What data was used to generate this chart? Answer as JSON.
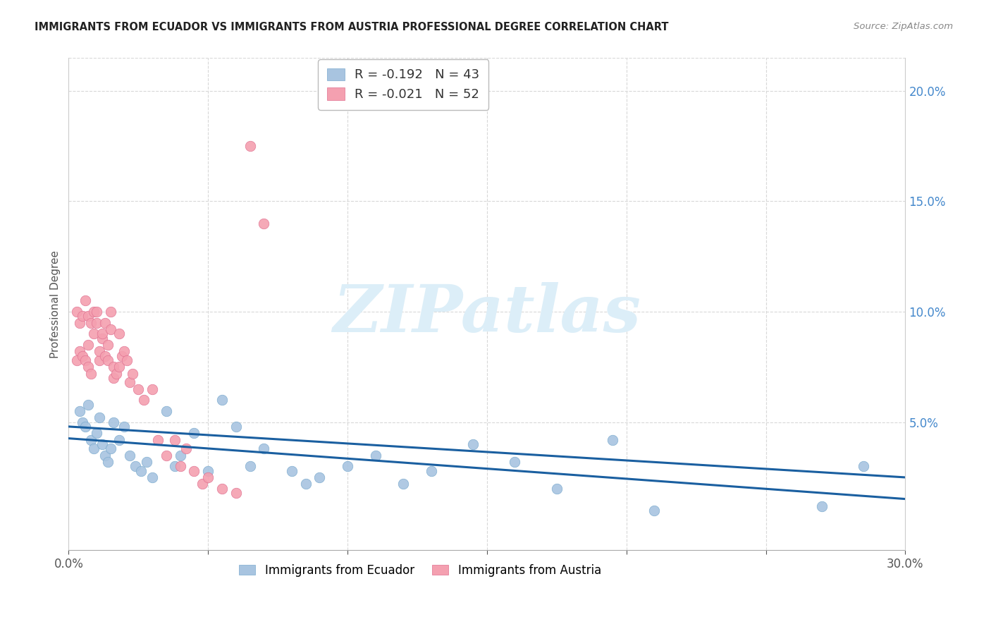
{
  "title": "IMMIGRANTS FROM ECUADOR VS IMMIGRANTS FROM AUSTRIA PROFESSIONAL DEGREE CORRELATION CHART",
  "source": "Source: ZipAtlas.com",
  "ylabel": "Professional Degree",
  "right_ytick_labels": [
    "20.0%",
    "15.0%",
    "10.0%",
    "5.0%"
  ],
  "right_ytick_values": [
    0.2,
    0.15,
    0.1,
    0.05
  ],
  "xlim": [
    0.0,
    0.3
  ],
  "ylim": [
    -0.008,
    0.215
  ],
  "ecuador_color": "#a8c4e0",
  "austria_color": "#f4a0b0",
  "ecuador_edge_color": "#7aaace",
  "austria_edge_color": "#e07090",
  "ecuador_label": "Immigrants from Ecuador",
  "austria_label": "Immigrants from Austria",
  "ecuador_R": "-0.192",
  "ecuador_N": "43",
  "austria_R": "-0.021",
  "austria_N": "52",
  "trendline_ecuador_color": "#1a5fa0",
  "trendline_austria_color": "#d04060",
  "watermark": "ZIPatlas",
  "watermark_color": "#dceef8",
  "grid_color": "#d8d8d8",
  "ecuador_x": [
    0.004,
    0.005,
    0.006,
    0.007,
    0.008,
    0.009,
    0.01,
    0.011,
    0.012,
    0.013,
    0.014,
    0.015,
    0.016,
    0.018,
    0.02,
    0.022,
    0.024,
    0.026,
    0.028,
    0.03,
    0.035,
    0.038,
    0.04,
    0.045,
    0.05,
    0.055,
    0.06,
    0.065,
    0.07,
    0.08,
    0.085,
    0.09,
    0.1,
    0.11,
    0.12,
    0.13,
    0.145,
    0.16,
    0.175,
    0.195,
    0.21,
    0.27,
    0.285
  ],
  "ecuador_y": [
    0.055,
    0.05,
    0.048,
    0.058,
    0.042,
    0.038,
    0.045,
    0.052,
    0.04,
    0.035,
    0.032,
    0.038,
    0.05,
    0.042,
    0.048,
    0.035,
    0.03,
    0.028,
    0.032,
    0.025,
    0.055,
    0.03,
    0.035,
    0.045,
    0.028,
    0.06,
    0.048,
    0.03,
    0.038,
    0.028,
    0.022,
    0.025,
    0.03,
    0.035,
    0.022,
    0.028,
    0.04,
    0.032,
    0.02,
    0.042,
    0.01,
    0.012,
    0.03
  ],
  "austria_x": [
    0.003,
    0.003,
    0.004,
    0.004,
    0.005,
    0.005,
    0.006,
    0.006,
    0.007,
    0.007,
    0.007,
    0.008,
    0.008,
    0.009,
    0.009,
    0.01,
    0.01,
    0.011,
    0.011,
    0.012,
    0.012,
    0.013,
    0.013,
    0.014,
    0.014,
    0.015,
    0.015,
    0.016,
    0.016,
    0.017,
    0.018,
    0.018,
    0.019,
    0.02,
    0.021,
    0.022,
    0.023,
    0.025,
    0.027,
    0.03,
    0.032,
    0.035,
    0.038,
    0.04,
    0.042,
    0.045,
    0.048,
    0.05,
    0.055,
    0.06,
    0.065,
    0.07
  ],
  "austria_y": [
    0.078,
    0.1,
    0.082,
    0.095,
    0.08,
    0.098,
    0.078,
    0.105,
    0.075,
    0.098,
    0.085,
    0.072,
    0.095,
    0.09,
    0.1,
    0.095,
    0.1,
    0.078,
    0.082,
    0.088,
    0.09,
    0.08,
    0.095,
    0.085,
    0.078,
    0.092,
    0.1,
    0.075,
    0.07,
    0.072,
    0.075,
    0.09,
    0.08,
    0.082,
    0.078,
    0.068,
    0.072,
    0.065,
    0.06,
    0.065,
    0.042,
    0.035,
    0.042,
    0.03,
    0.038,
    0.028,
    0.022,
    0.025,
    0.02,
    0.018,
    0.175,
    0.14
  ]
}
